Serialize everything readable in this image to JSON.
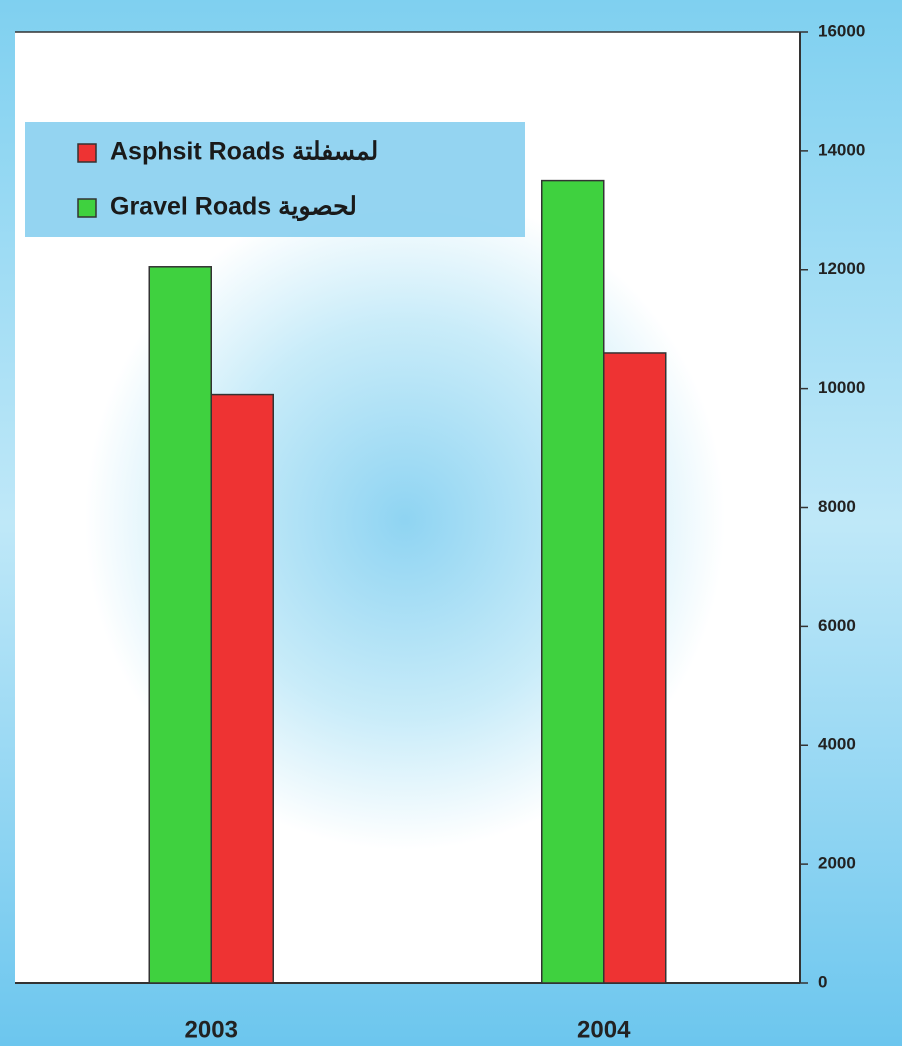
{
  "chart_data": {
    "type": "bar",
    "categories": [
      "2003",
      "2004"
    ],
    "series": [
      {
        "name": "Gravel Roads لحصوية",
        "color": "#3fd13f",
        "values": [
          12050,
          13500
        ]
      },
      {
        "name": "Asphsit Roads لمسفلتة",
        "color": "#ee3333",
        "values": [
          9900,
          10600
        ]
      }
    ],
    "ylim": [
      0,
      16000
    ],
    "yticks": [
      0,
      2000,
      4000,
      6000,
      8000,
      10000,
      12000,
      14000,
      16000
    ],
    "legend": "upper left"
  }
}
